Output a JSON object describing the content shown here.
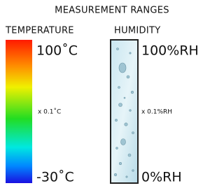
{
  "title": "MEASUREMENT RANGES",
  "panels": [
    {
      "label": "TEMPERATURE",
      "max": "100˚C",
      "resolution": "x 0.1˚C",
      "min": "-30˚C"
    },
    {
      "label": "HUMIDITY",
      "max": "100%RH",
      "resolution": "x 0.1%RH",
      "min": "0%RH"
    }
  ]
}
